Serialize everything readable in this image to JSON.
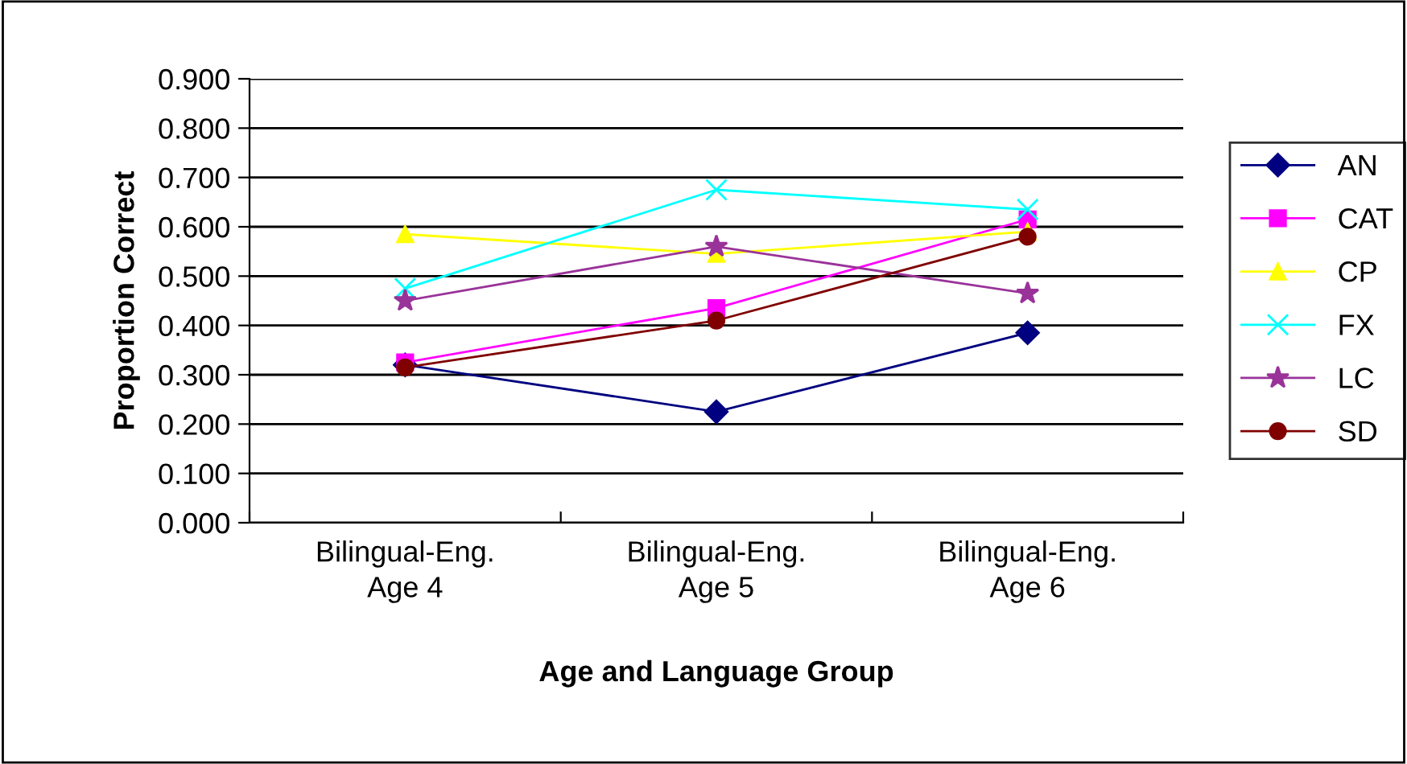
{
  "chart_data": {
    "type": "line",
    "xlabel": "Age and Language Group",
    "ylabel": "Proportion Correct",
    "categories": [
      "Bilingual-Eng.\nAge 4",
      "Bilingual-Eng.\nAge 5",
      "Bilingual-Eng.\nAge 6"
    ],
    "series": [
      {
        "name": "AN",
        "color": "#000080",
        "marker": "diamond",
        "values": [
          0.32,
          0.225,
          0.385
        ]
      },
      {
        "name": "CAT",
        "color": "#ff00ff",
        "marker": "square",
        "values": [
          0.325,
          0.435,
          0.615
        ]
      },
      {
        "name": "CP",
        "color": "#ffff00",
        "marker": "triangle",
        "values": [
          0.585,
          0.545,
          0.59
        ]
      },
      {
        "name": "FX",
        "color": "#00ffff",
        "marker": "cross",
        "values": [
          0.475,
          0.675,
          0.635
        ]
      },
      {
        "name": "LC",
        "color": "#993399",
        "marker": "star",
        "values": [
          0.45,
          0.56,
          0.465
        ]
      },
      {
        "name": "SD",
        "color": "#800000",
        "marker": "circle",
        "values": [
          0.315,
          0.41,
          0.58
        ]
      }
    ],
    "ylim": [
      0,
      0.9
    ],
    "yticks": [
      {
        "value": 0,
        "label": "0.000"
      },
      {
        "value": 0.1,
        "label": "0.100"
      },
      {
        "value": 0.2,
        "label": "0.200"
      },
      {
        "value": 0.3,
        "label": "0.300"
      },
      {
        "value": 0.4,
        "label": "0.400"
      },
      {
        "value": 0.5,
        "label": "0.500"
      },
      {
        "value": 0.6,
        "label": "0.600"
      },
      {
        "value": 0.7,
        "label": "0.700"
      },
      {
        "value": 0.8,
        "label": "0.800"
      },
      {
        "value": 0.9,
        "label": "0.900"
      }
    ],
    "grid": "y",
    "legend": "right",
    "line_style": "solid"
  }
}
